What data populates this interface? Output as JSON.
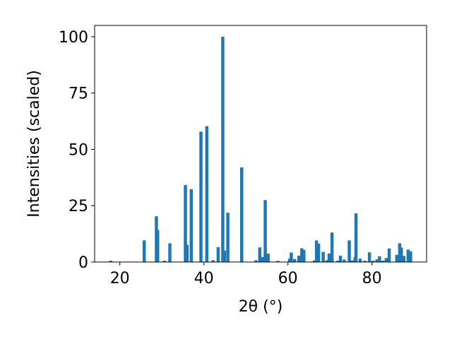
{
  "chart_data": {
    "type": "bar",
    "xlabel": "2θ (°)",
    "ylabel": "Intensities (scaled)",
    "xlim": [
      14,
      93
    ],
    "ylim": [
      0,
      105
    ],
    "x_ticks": [
      20,
      40,
      60,
      80
    ],
    "y_ticks": [
      0,
      25,
      50,
      75,
      100
    ],
    "x_tick_labels": [
      "20",
      "40",
      "60",
      "80"
    ],
    "y_tick_labels": [
      "0",
      "25",
      "50",
      "75",
      "100"
    ],
    "bar_color": "#1f77b4",
    "bar_width": 0.75,
    "grid": false,
    "x": [
      17.8,
      25.8,
      28.7,
      29.0,
      30.6,
      31.9,
      35.6,
      36.0,
      37.0,
      39.3,
      40.7,
      42.2,
      43.4,
      44.5,
      44.9,
      45.7,
      49.0,
      52.4,
      53.3,
      54.0,
      54.6,
      55.3,
      57.6,
      60.4,
      60.8,
      61.6,
      62.6,
      63.3,
      63.8,
      66.3,
      66.8,
      67.3,
      68.4,
      69.3,
      69.8,
      70.5,
      71.9,
      72.5,
      73.4,
      74.6,
      75.3,
      76.0,
      76.2,
      77.2,
      78.3,
      79.4,
      80.3,
      81.2,
      81.8,
      82.6,
      83.4,
      84.1,
      85.9,
      86.6,
      87.0,
      87.6,
      88.6,
      89.2
    ],
    "y": [
      0.6,
      9.6,
      20.3,
      14.2,
      0.6,
      8.3,
      34.2,
      7.6,
      32.3,
      57.9,
      60.3,
      0.8,
      6.6,
      100.0,
      5.1,
      21.9,
      42.0,
      0.8,
      6.5,
      2.2,
      27.5,
      3.7,
      0.5,
      1.5,
      4.2,
      1.3,
      2.8,
      6.1,
      5.4,
      0.7,
      9.6,
      8.2,
      4.5,
      0.8,
      3.8,
      13.1,
      0.6,
      2.8,
      1.1,
      9.6,
      0.7,
      2.3,
      21.6,
      1.5,
      0.6,
      4.3,
      0.6,
      1.2,
      2.5,
      0.6,
      1.8,
      6.0,
      3.2,
      8.3,
      6.4,
      2.7,
      5.5,
      4.8
    ]
  }
}
